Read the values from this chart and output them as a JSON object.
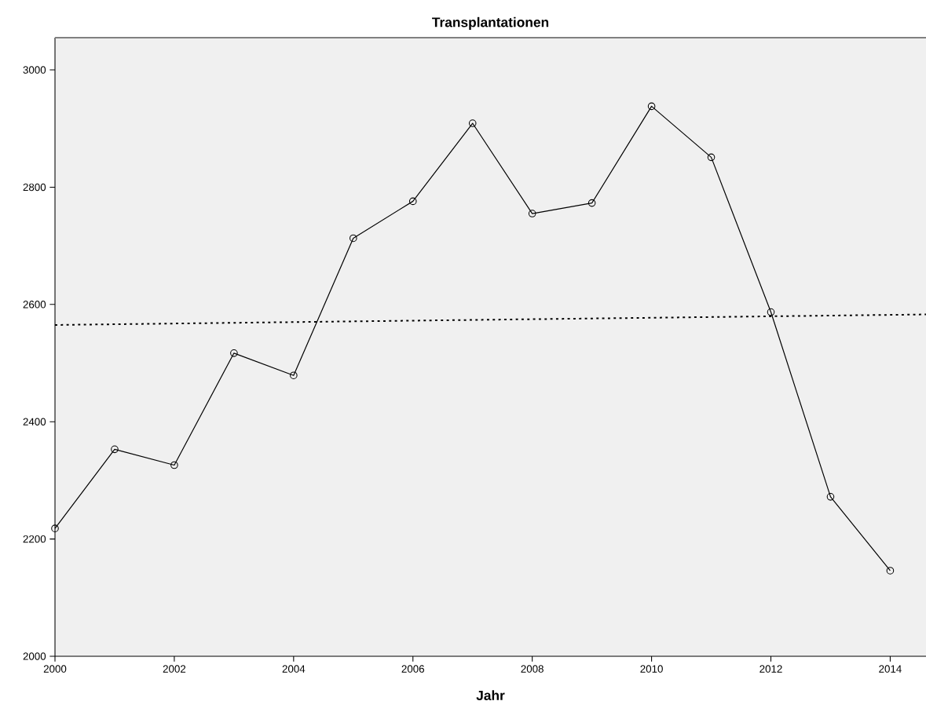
{
  "chart_data": {
    "type": "line",
    "title": "Transplantationen",
    "xlabel": "Jahr",
    "x": [
      2000,
      2001,
      2002,
      2003,
      2004,
      2005,
      2006,
      2007,
      2008,
      2009,
      2010,
      2011,
      2012,
      2013,
      2014
    ],
    "series": [
      {
        "color": "#000000",
        "marker": "circle",
        "line_style": "solid",
        "values": [
          2218,
          2353,
          2326,
          2517,
          2479,
          2713,
          2776,
          2909,
          2755,
          2773,
          2938,
          2851,
          2587,
          2272,
          2146
        ]
      },
      {
        "type": "line",
        "color": "#000000",
        "marker": "none",
        "line_style": "dotted",
        "x": [
          2000,
          2014.6
        ],
        "values": [
          2565,
          2583
        ]
      }
    ],
    "xlim": [
      2000,
      2014.6
    ],
    "ylim": [
      2000,
      3055
    ],
    "xticks": [
      2000,
      2002,
      2004,
      2006,
      2008,
      2010,
      2012,
      2014
    ],
    "yticks": [
      2000,
      2200,
      2400,
      2600,
      2800,
      3000
    ],
    "grid": false
  }
}
